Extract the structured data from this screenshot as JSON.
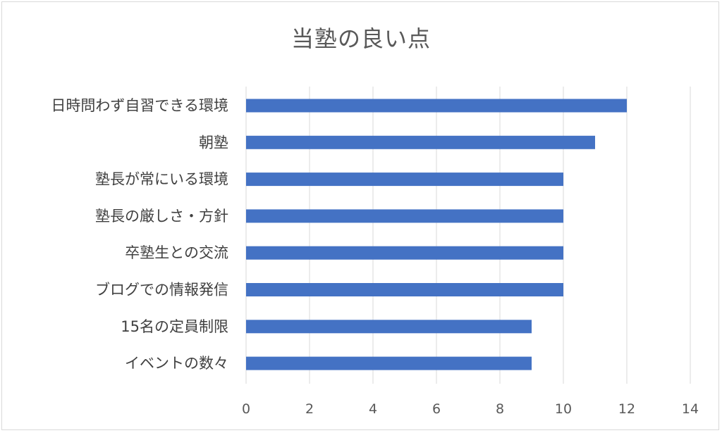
{
  "chart_data": {
    "type": "bar",
    "orientation": "horizontal",
    "title": "当塾の良い点",
    "categories": [
      "日時問わず自習できる環境",
      "朝塾",
      "塾長が常にいる環境",
      "塾長の厳しさ・方針",
      "卒塾生との交流",
      "ブログでの情報発信",
      "15名の定員制限",
      "イベントの数々"
    ],
    "values": [
      12,
      11,
      10,
      10,
      10,
      10,
      9,
      9
    ],
    "xlim": [
      0,
      14
    ],
    "xticks": [
      0,
      2,
      4,
      6,
      8,
      10,
      12,
      14
    ],
    "grid": true,
    "bar_color": "#4472c4",
    "xlabel": "",
    "ylabel": ""
  }
}
